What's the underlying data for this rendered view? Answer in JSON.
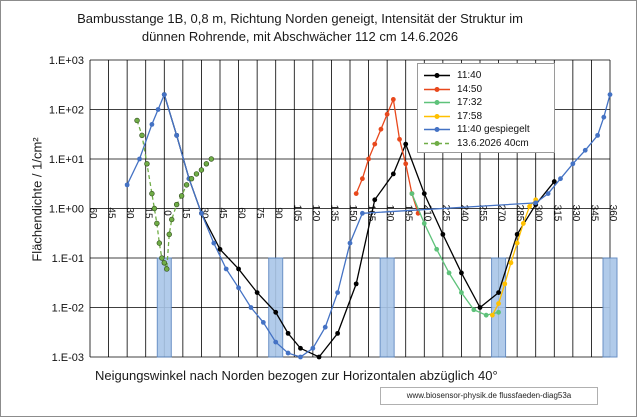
{
  "chart_data": {
    "type": "line",
    "title_line1": "Bambusstange 1B,  0,8 m,  Richtung Norden geneigt, Intensität der Struktur im",
    "title_line2": "dünnen Rohrende,  mit  Abschwächer 112 cm 14.6.2026",
    "xlabel": "Neigungswinkel nach Norden bezogen zur Horizontalen abzüglich 40°",
    "ylabel": "Flächendichte  / 1/cm²",
    "y_scale": "log",
    "ylim": [
      0.001,
      1000
    ],
    "xlim": [
      -60,
      360
    ],
    "y_tick_labels": [
      "1.E+03",
      "1.E+02",
      "1.E+01",
      "1.E+00",
      "1.E-01",
      "1.E-02",
      "1.E-03"
    ],
    "x_tick_labels": [
      "60",
      "45",
      "30",
      "15",
      "0",
      "15",
      "30",
      "45",
      "60",
      "75",
      "90",
      "105",
      "120",
      "135",
      "150",
      "165",
      "180",
      "195",
      "210",
      "225",
      "240",
      "255",
      "270",
      "285",
      "300",
      "315",
      "330",
      "345",
      "360"
    ],
    "grid": true,
    "legend_position": "top-right",
    "series": [
      {
        "name": "11:40",
        "color": "#000000",
        "marker": "circle",
        "line": "solid",
        "points": [
          [
            0,
            200
          ],
          [
            10,
            30
          ],
          [
            20,
            4
          ],
          [
            30,
            0.8
          ],
          [
            45,
            0.15
          ],
          [
            60,
            0.06
          ],
          [
            75,
            0.02
          ],
          [
            90,
            0.008
          ],
          [
            100,
            0.003
          ],
          [
            110,
            0.0015
          ],
          [
            125,
            0.001
          ],
          [
            140,
            0.003
          ],
          [
            155,
            0.03
          ],
          [
            170,
            1.5
          ],
          [
            185,
            5
          ],
          [
            195,
            20
          ],
          [
            210,
            2
          ],
          [
            225,
            0.3
          ],
          [
            240,
            0.05
          ],
          [
            255,
            0.01
          ],
          [
            270,
            0.02
          ],
          [
            285,
            0.3
          ],
          [
            300,
            1.2
          ],
          [
            315,
            3.5
          ]
        ]
      },
      {
        "name": "14:50",
        "color": "#e8481c",
        "marker": "circle",
        "line": "solid",
        "points": [
          [
            155,
            2
          ],
          [
            160,
            4
          ],
          [
            165,
            10
          ],
          [
            170,
            20
          ],
          [
            175,
            40
          ],
          [
            180,
            80
          ],
          [
            185,
            160
          ],
          [
            190,
            25
          ],
          [
            195,
            8
          ],
          [
            200,
            2
          ],
          [
            205,
            0.8
          ]
        ]
      },
      {
        "name": "17:32",
        "color": "#5ec27a",
        "marker": "circle",
        "line": "solid",
        "points": [
          [
            200,
            2
          ],
          [
            210,
            0.5
          ],
          [
            220,
            0.15
          ],
          [
            230,
            0.05
          ],
          [
            240,
            0.02
          ],
          [
            250,
            0.009
          ],
          [
            260,
            0.007
          ],
          [
            270,
            0.008
          ]
        ]
      },
      {
        "name": "17:58",
        "color": "#ffc000",
        "marker": "circle",
        "line": "solid",
        "points": [
          [
            265,
            0.007
          ],
          [
            270,
            0.012
          ],
          [
            275,
            0.03
          ],
          [
            280,
            0.08
          ],
          [
            285,
            0.2
          ],
          [
            290,
            0.5
          ],
          [
            295,
            1.1
          ],
          [
            300,
            1.5
          ]
        ]
      },
      {
        "name": "11:40 gespiegelt",
        "color": "#4472c4",
        "marker": "circle",
        "line": "solid",
        "points": [
          [
            -30,
            3
          ],
          [
            -20,
            10
          ],
          [
            -10,
            50
          ],
          [
            -5,
            100
          ],
          [
            0,
            200
          ],
          [
            10,
            30
          ],
          [
            20,
            4
          ],
          [
            30,
            0.8
          ],
          [
            40,
            0.2
          ],
          [
            50,
            0.06
          ],
          [
            60,
            0.025
          ],
          [
            70,
            0.01
          ],
          [
            80,
            0.005
          ],
          [
            90,
            0.002
          ],
          [
            100,
            0.0012
          ],
          [
            110,
            0.001
          ],
          [
            120,
            0.0015
          ],
          [
            130,
            0.004
          ],
          [
            140,
            0.02
          ],
          [
            150,
            0.2
          ],
          [
            160,
            0.8
          ],
          [
            300,
            1.3
          ],
          [
            310,
            2
          ],
          [
            320,
            4
          ],
          [
            330,
            8
          ],
          [
            340,
            15
          ],
          [
            350,
            30
          ],
          [
            355,
            70
          ],
          [
            360,
            200
          ]
        ]
      },
      {
        "name": "13.6.2026  40cm",
        "color": "#70ad47",
        "marker": "circle",
        "line": "dashed",
        "points": [
          [
            -22,
            60
          ],
          [
            -18,
            30
          ],
          [
            -14,
            8
          ],
          [
            -10,
            2
          ],
          [
            -8,
            1
          ],
          [
            -6,
            0.5
          ],
          [
            -4,
            0.2
          ],
          [
            -2,
            0.1
          ],
          [
            0,
            0.08
          ],
          [
            2,
            0.06
          ],
          [
            4,
            0.3
          ],
          [
            6,
            0.6
          ],
          [
            10,
            1.2
          ],
          [
            14,
            1.8
          ],
          [
            18,
            3
          ],
          [
            22,
            4
          ],
          [
            26,
            5
          ],
          [
            30,
            6
          ],
          [
            34,
            8
          ],
          [
            38,
            10
          ]
        ]
      }
    ],
    "shaded_bars": [
      {
        "x": 0,
        "top": 0.1,
        "color": "#a9c6e8"
      },
      {
        "x": 90,
        "top": 0.1,
        "color": "#a9c6e8"
      },
      {
        "x": 180,
        "top": 0.1,
        "color": "#a9c6e8"
      },
      {
        "x": 270,
        "top": 0.1,
        "color": "#a9c6e8"
      },
      {
        "x": 360,
        "top": 0.1,
        "color": "#a9c6e8"
      }
    ]
  },
  "watermark": "www.biosensor-physik.de  flussfaeden-diag53a"
}
